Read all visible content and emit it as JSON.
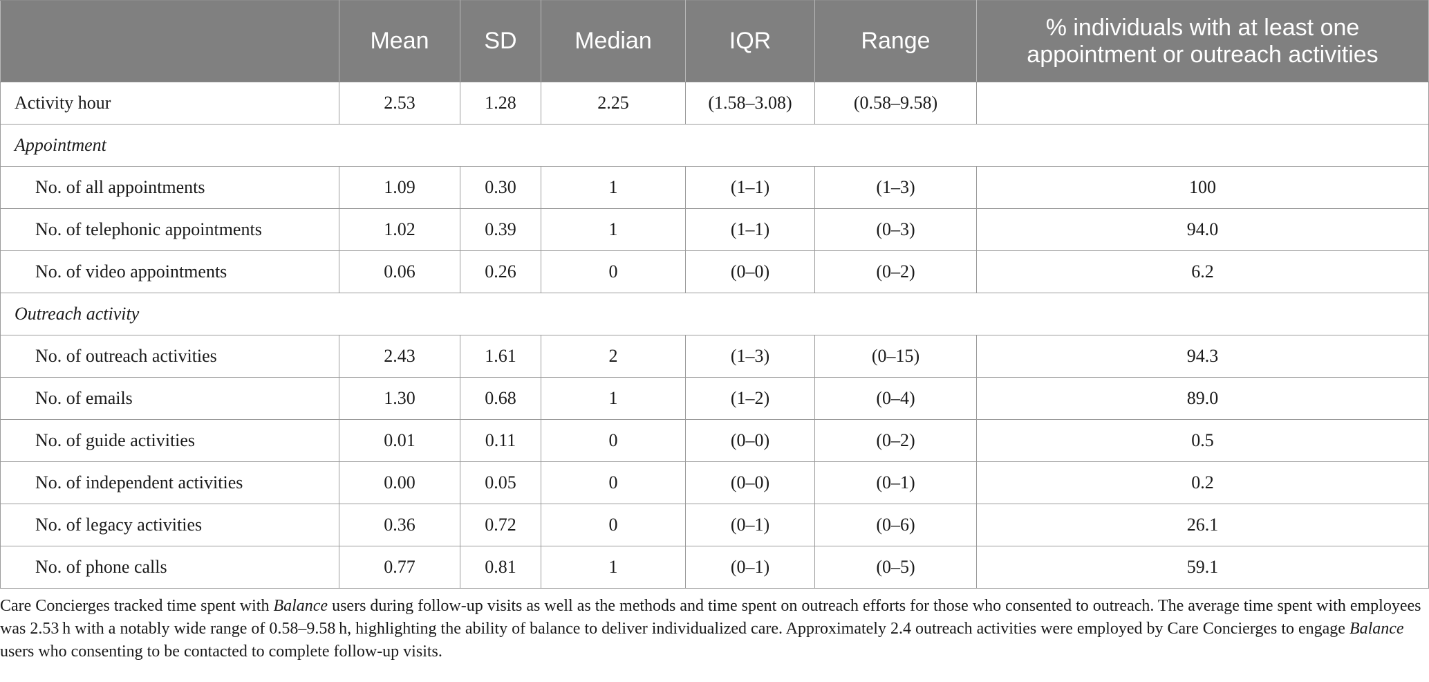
{
  "table": {
    "headers": [
      "",
      "Mean",
      "SD",
      "Median",
      "IQR",
      "Range",
      "% individuals with at least one appointment or outreach activities"
    ],
    "rows": [
      {
        "label": "Activity hour",
        "values": [
          "2.53",
          "1.28",
          "2.25",
          "(1.58–3.08)",
          "(0.58–9.58)",
          ""
        ]
      },
      {
        "section": "Appointment"
      },
      {
        "label": "No. of all appointments",
        "values": [
          "1.09",
          "0.30",
          "1",
          "(1–1)",
          "(1–3)",
          "100"
        ]
      },
      {
        "label": "No. of telephonic appointments",
        "values": [
          "1.02",
          "0.39",
          "1",
          "(1–1)",
          "(0–3)",
          "94.0"
        ]
      },
      {
        "label": "No. of video appointments",
        "values": [
          "0.06",
          "0.26",
          "0",
          "(0–0)",
          "(0–2)",
          "6.2"
        ]
      },
      {
        "section": "Outreach activity"
      },
      {
        "label": "No. of outreach activities",
        "values": [
          "2.43",
          "1.61",
          "2",
          "(1–3)",
          "(0–15)",
          "94.3"
        ]
      },
      {
        "label": "No. of emails",
        "values": [
          "1.30",
          "0.68",
          "1",
          "(1–2)",
          "(0–4)",
          "89.0"
        ]
      },
      {
        "label": "No. of guide activities",
        "values": [
          "0.01",
          "0.11",
          "0",
          "(0–0)",
          "(0–2)",
          "0.5"
        ]
      },
      {
        "label": "No. of independent activities",
        "values": [
          "0.00",
          "0.05",
          "0",
          "(0–0)",
          "(0–1)",
          "0.2"
        ]
      },
      {
        "label": "No. of legacy activities",
        "values": [
          "0.36",
          "0.72",
          "0",
          "(0–1)",
          "(0–6)",
          "26.1"
        ]
      },
      {
        "label": "No. of phone calls",
        "values": [
          "0.77",
          "0.81",
          "1",
          "(0–1)",
          "(0–5)",
          "59.1"
        ]
      }
    ]
  },
  "footnote": {
    "p1": "Care Concierges tracked time spent with ",
    "em1": "Balance",
    "p2": " users during follow-up visits as well as the methods and time spent on outreach efforts for those who consented to outreach. The average time spent with employees was 2.53 h with a notably wide range of 0.58–9.58 h, highlighting the ability of balance to deliver individualized care. Approximately 2.4 outreach activities were employed by Care Concierges to engage ",
    "em2": "Balance",
    "p3": " users who consenting to be contacted to complete follow-up visits."
  },
  "colors": {
    "header_background": "#808080",
    "header_text": "#ffffff",
    "grid_lines": "#9a9a9a",
    "body_text": "#1a1a1a"
  }
}
